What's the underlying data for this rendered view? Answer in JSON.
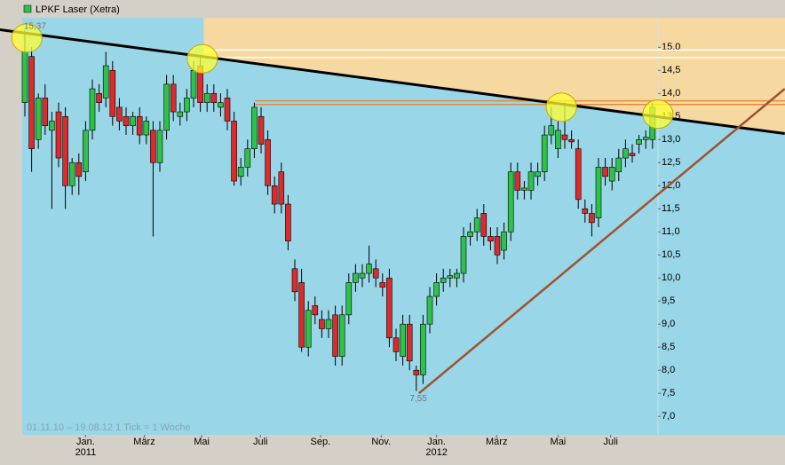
{
  "chart_data": {
    "type": "candlestick",
    "title": "LPKF Laser (Xetra)",
    "footnote": "01.11.10 – 19.08.12   1 Tick = 1 Woche",
    "up_color": "#2fc24a",
    "down_color": "#dd2b2b",
    "open": [
      13.8,
      14.8,
      13.0,
      13.9,
      13.2,
      13.6,
      13.5,
      12.0,
      12.5,
      12.3,
      13.2,
      14.0,
      13.9,
      14.5,
      13.7,
      13.5,
      13.3,
      13.5,
      13.1,
      13.2,
      12.5,
      13.2,
      14.2,
      13.5,
      13.6,
      13.9,
      14.6,
      13.8,
      14.0,
      13.7,
      13.9,
      13.4,
      12.2,
      12.4,
      12.8,
      13.5,
      13.0,
      12.0,
      12.3,
      11.6,
      10.2,
      9.9,
      8.5,
      9.4,
      9.1,
      8.9,
      9.2,
      8.3,
      9.2,
      9.9,
      10.0,
      10.1,
      10.2,
      9.9,
      10.0,
      8.7,
      8.3,
      9.0,
      8.0,
      7.9,
      9.0,
      9.6,
      9.9,
      10.0,
      10.0,
      10.1,
      10.9,
      11.0,
      11.4,
      10.9,
      10.9,
      10.6,
      11.0,
      12.3,
      11.9,
      11.9,
      12.2,
      12.3,
      13.1,
      12.8,
      13.1,
      13.0,
      12.8,
      11.5,
      11.4,
      11.3,
      12.4,
      12.1,
      12.3,
      12.6,
      12.7,
      12.9,
      13.0,
      13.0
    ],
    "high": [
      15.37,
      15.0,
      14.0,
      14.2,
      13.6,
      13.8,
      13.7,
      12.6,
      12.7,
      13.4,
      14.3,
      14.2,
      14.9,
      14.7,
      13.9,
      13.7,
      13.6,
      13.7,
      13.5,
      13.4,
      13.4,
      14.4,
      14.4,
      13.8,
      14.1,
      14.7,
      14.8,
      14.2,
      14.2,
      14.0,
      14.1,
      13.6,
      12.6,
      13.0,
      13.8,
      13.7,
      13.2,
      12.2,
      12.5,
      11.8,
      10.4,
      10.2,
      9.5,
      9.6,
      9.3,
      9.3,
      9.4,
      9.4,
      10.1,
      10.3,
      10.3,
      10.7,
      10.4,
      10.1,
      10.2,
      8.9,
      9.2,
      9.2,
      8.1,
      9.2,
      9.8,
      10.1,
      10.2,
      10.2,
      10.2,
      11.1,
      11.2,
      11.5,
      11.6,
      11.1,
      11.1,
      11.2,
      12.5,
      12.5,
      12.1,
      12.5,
      12.5,
      13.3,
      13.7,
      13.4,
      13.8,
      13.2,
      13.0,
      11.7,
      11.6,
      12.6,
      12.6,
      12.6,
      12.8,
      13.0,
      12.9,
      13.1,
      13.2,
      13.8
    ],
    "low": [
      13.5,
      12.3,
      12.8,
      13.1,
      11.5,
      12.4,
      11.5,
      11.8,
      11.8,
      12.1,
      13.0,
      13.6,
      13.7,
      13.3,
      13.2,
      13.1,
      13.1,
      12.9,
      12.9,
      10.9,
      12.3,
      13.0,
      13.4,
      13.3,
      13.4,
      13.7,
      13.6,
      13.6,
      13.6,
      13.5,
      13.2,
      12.0,
      12.0,
      12.2,
      12.6,
      12.7,
      11.8,
      11.4,
      11.4,
      10.6,
      9.5,
      8.4,
      8.3,
      9.0,
      8.7,
      8.7,
      8.1,
      8.1,
      9.0,
      9.7,
      9.8,
      9.9,
      9.8,
      9.6,
      8.5,
      8.2,
      8.1,
      8.0,
      7.55,
      7.7,
      8.8,
      9.4,
      9.7,
      9.8,
      9.8,
      9.9,
      10.7,
      10.8,
      10.7,
      10.6,
      10.3,
      10.4,
      10.8,
      11.7,
      11.7,
      11.7,
      12.0,
      12.1,
      12.9,
      12.6,
      12.8,
      12.8,
      11.5,
      11.2,
      10.9,
      11.1,
      12.0,
      11.9,
      12.1,
      12.4,
      12.5,
      12.7,
      12.8,
      12.8
    ],
    "close": [
      14.9,
      12.8,
      13.9,
      13.3,
      13.4,
      12.6,
      12.0,
      12.5,
      12.2,
      13.2,
      14.1,
      13.8,
      14.6,
      13.5,
      13.4,
      13.3,
      13.5,
      13.1,
      13.4,
      12.5,
      13.2,
      14.2,
      13.6,
      13.6,
      13.9,
      14.5,
      13.8,
      14.0,
      13.8,
      13.8,
      13.4,
      12.1,
      12.4,
      12.8,
      13.7,
      12.9,
      12.0,
      11.6,
      11.6,
      10.8,
      9.7,
      8.5,
      9.3,
      9.2,
      8.9,
      9.1,
      8.3,
      9.2,
      9.9,
      10.1,
      10.1,
      10.3,
      10.0,
      9.8,
      8.7,
      8.4,
      9.0,
      8.2,
      7.9,
      9.0,
      9.6,
      9.9,
      10.0,
      10.05,
      10.1,
      10.9,
      11.0,
      11.3,
      10.9,
      10.8,
      10.5,
      11.0,
      12.3,
      11.9,
      11.95,
      12.3,
      12.3,
      13.1,
      13.3,
      13.2,
      13.0,
      12.95,
      11.7,
      11.4,
      11.2,
      12.4,
      12.2,
      12.4,
      12.6,
      12.8,
      12.65,
      13.0,
      13.05,
      13.7
    ],
    "ylim": [
      6.6,
      15.64
    ],
    "yticks": [
      {
        "value": 7,
        "label": "7,0"
      },
      {
        "value": 7.5,
        "label": "7,5"
      },
      {
        "value": 8,
        "label": "8,0"
      },
      {
        "value": 8.5,
        "label": "8,5"
      },
      {
        "value": 9,
        "label": "9,0"
      },
      {
        "value": 9.5,
        "label": "9,5"
      },
      {
        "value": 10,
        "label": "10,0"
      },
      {
        "value": 10.5,
        "label": "10,5"
      },
      {
        "value": 11,
        "label": "11,0"
      },
      {
        "value": 11.5,
        "label": "11,5"
      },
      {
        "value": 12,
        "label": "12,0"
      },
      {
        "value": 12.5,
        "label": "12,5"
      },
      {
        "value": 13,
        "label": "13,0"
      },
      {
        "value": 13.5,
        "label": "13,5"
      },
      {
        "value": 14,
        "label": "14,0"
      },
      {
        "value": 14.5,
        "label": "14,5"
      },
      {
        "value": 15,
        "label": "15,0"
      }
    ],
    "xticks": [
      {
        "value": 9,
        "label": "Jan.",
        "year": "2011"
      },
      {
        "value": 17.7,
        "label": "März"
      },
      {
        "value": 26.2,
        "label": "Mai"
      },
      {
        "value": 34.9,
        "label": "Juli"
      },
      {
        "value": 43.8,
        "label": "Sep."
      },
      {
        "value": 52.8,
        "label": "Nov."
      },
      {
        "value": 61,
        "label": "Jan.",
        "year": "2012"
      },
      {
        "value": 69.9,
        "label": "März"
      },
      {
        "value": 79,
        "label": "Mai"
      },
      {
        "value": 86.8,
        "label": "Juli"
      }
    ],
    "trendlines": [
      {
        "color": "#000000",
        "from": [
          -3.7,
          15.38
        ],
        "to": [
          112.6,
          13.13
        ]
      },
      {
        "color": "#a0522d",
        "from": [
          58.4,
          7.5
        ],
        "to": [
          112.6,
          14.1
        ]
      }
    ],
    "levels": [
      {
        "color": "#ffffff",
        "value": 14.94,
        "from": 26.5
      },
      {
        "color": "#ffffff",
        "value": 14.78,
        "from": 26.5
      },
      {
        "color": "#e08a3c",
        "value": 13.84,
        "from": 34.1
      },
      {
        "color": "#e08a3c",
        "value": 13.76,
        "from": 34.1
      }
    ],
    "highlights": [
      [
        0.3,
        15.2
      ],
      [
        26.3,
        14.75
      ],
      [
        79.5,
        13.7
      ],
      [
        93.8,
        13.55
      ]
    ],
    "annotations": [
      {
        "text": "15,37",
        "index": 1.5,
        "value": 15.37
      },
      {
        "text": "7,55",
        "index": 58.3,
        "value": 7.55
      }
    ]
  }
}
